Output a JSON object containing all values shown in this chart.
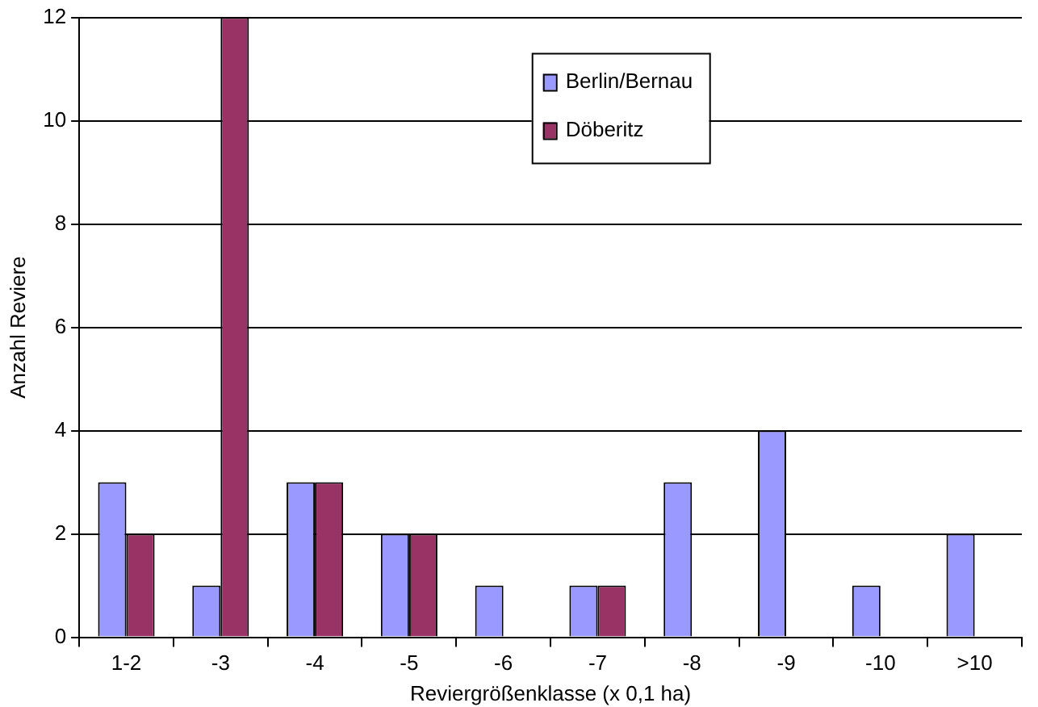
{
  "chart_data": {
    "type": "bar",
    "xlabel": "Reviergrößenklasse (x 0,1 ha)",
    "ylabel": "Anzahl Reviere",
    "categories": [
      "1-2",
      "-3",
      "-4",
      "-5",
      "-6",
      "-7",
      "-8",
      "-9",
      "-10",
      ">10"
    ],
    "series": [
      {
        "name": "Berlin/Bernau",
        "color": "#9999ff",
        "values": [
          3,
          1,
          3,
          2,
          1,
          1,
          3,
          4,
          1,
          2
        ]
      },
      {
        "name": "Döberitz",
        "color": "#993366",
        "values": [
          2,
          12,
          3,
          2,
          0,
          1,
          0,
          0,
          0,
          0
        ]
      }
    ],
    "ylim": [
      0,
      12
    ],
    "yticks": [
      0,
      2,
      4,
      6,
      8,
      10,
      12
    ],
    "grid": "y",
    "legend": "top"
  }
}
